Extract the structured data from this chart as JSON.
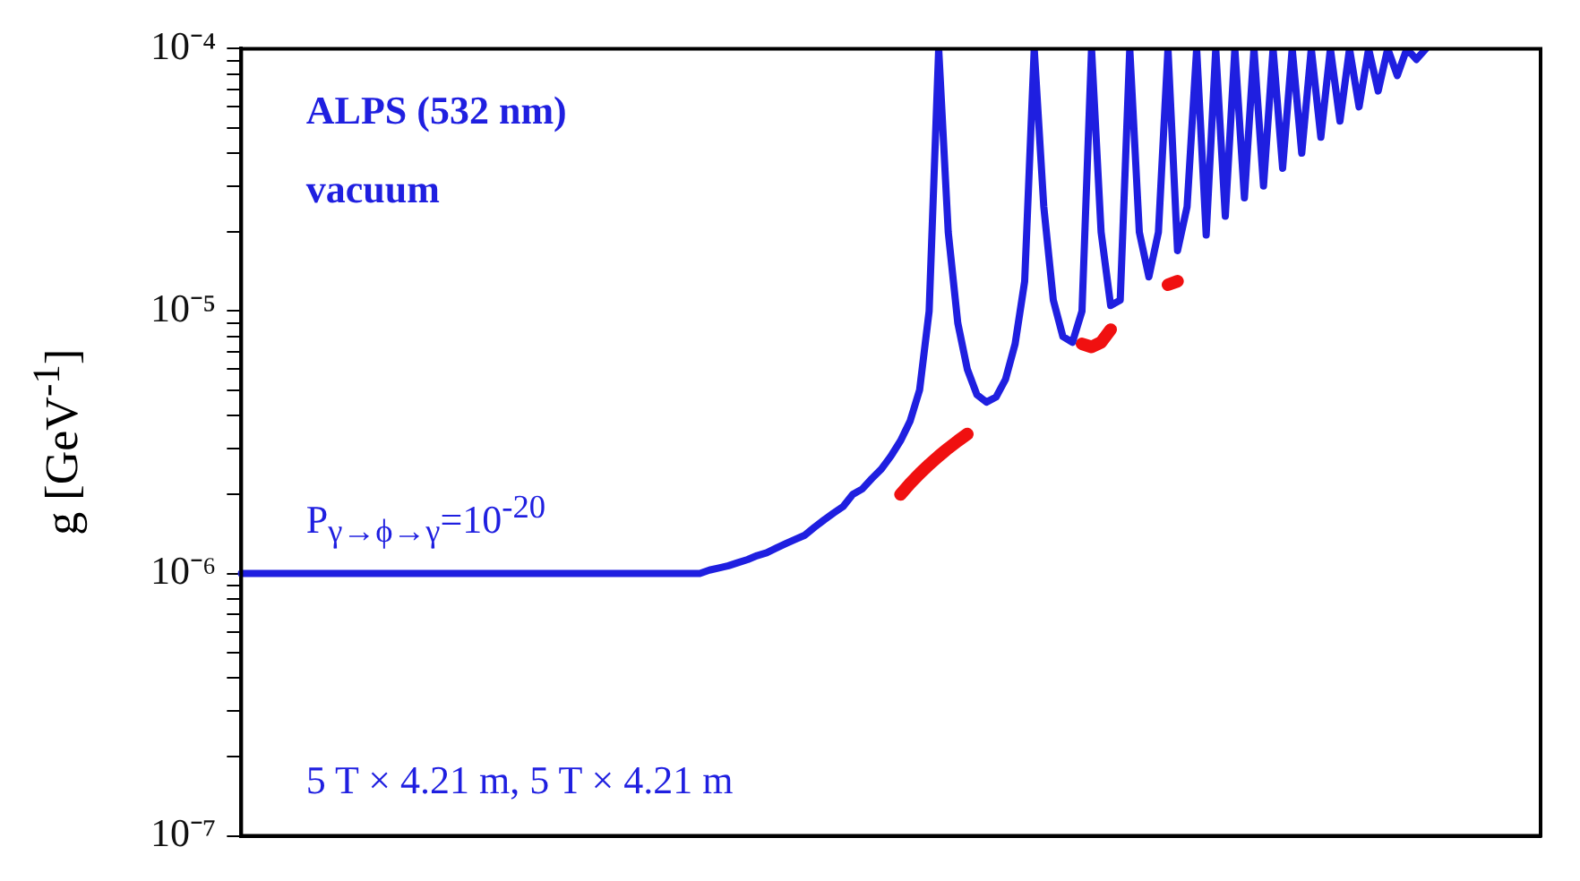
{
  "chart_data": {
    "type": "line",
    "ylabel": "g [GeV$^{-1}$]",
    "annotations": [
      "ALPS (532 nm)",
      "vacuum",
      "P$_{γ→ϕ→γ}$=10$^{-20}$",
      "5 T × 4.21 m, 5 T × 4.21 m"
    ],
    "log": "y",
    "grid": false,
    "ylim": [
      1e-07,
      0.0001
    ],
    "yticks": [
      {
        "value": 1e-07,
        "label": "10⁻⁷"
      },
      {
        "value": 2e-07,
        "label": null
      },
      {
        "value": 3e-07,
        "label": null
      },
      {
        "value": 4e-07,
        "label": null
      },
      {
        "value": 5e-07,
        "label": null
      },
      {
        "value": 6e-07,
        "label": null
      },
      {
        "value": 7e-07,
        "label": null
      },
      {
        "value": 8e-07,
        "label": null
      },
      {
        "value": 9e-07,
        "label": null
      },
      {
        "value": 1e-06,
        "label": "10⁻⁶"
      },
      {
        "value": 2e-06,
        "label": null
      },
      {
        "value": 3e-06,
        "label": null
      },
      {
        "value": 4e-06,
        "label": null
      },
      {
        "value": 5e-06,
        "label": null
      },
      {
        "value": 6e-06,
        "label": null
      },
      {
        "value": 7e-06,
        "label": null
      },
      {
        "value": 8e-06,
        "label": null
      },
      {
        "value": 9e-06,
        "label": null
      },
      {
        "value": 1e-05,
        "label": "10⁻⁵"
      },
      {
        "value": 2e-05,
        "label": null
      },
      {
        "value": 3e-05,
        "label": null
      },
      {
        "value": 4e-05,
        "label": null
      },
      {
        "value": 5e-05,
        "label": null
      },
      {
        "value": 6e-05,
        "label": null
      },
      {
        "value": 7e-05,
        "label": null
      },
      {
        "value": 8e-05,
        "label": null
      },
      {
        "value": 9e-05,
        "label": null
      },
      {
        "value": 0.0001,
        "label": "10⁻⁴"
      }
    ],
    "categories": [
      null,
      null,
      null,
      null,
      null,
      null,
      null,
      null,
      null,
      null,
      null,
      null,
      null,
      null,
      null,
      null,
      null,
      null,
      null,
      null,
      null,
      null,
      null,
      null,
      null,
      null,
      null,
      null,
      null,
      null,
      null,
      null,
      null,
      null,
      null,
      null,
      null,
      null,
      null,
      null,
      null,
      null,
      null,
      null,
      null,
      null,
      null,
      null,
      null,
      null,
      null,
      null,
      null,
      null,
      null,
      null,
      null,
      null,
      null,
      null,
      null,
      null,
      null,
      null,
      null,
      null,
      null,
      null,
      null,
      null,
      null,
      null,
      null,
      null,
      null,
      null,
      null,
      null,
      null,
      null,
      null,
      null,
      null,
      null,
      null,
      null,
      null,
      null,
      null,
      null,
      null,
      null,
      null,
      null,
      null,
      null,
      null,
      null,
      null,
      null,
      null,
      null,
      null,
      null,
      null,
      null,
      null,
      null,
      null,
      null,
      null,
      null,
      null,
      null,
      null,
      null,
      null,
      null,
      null,
      null,
      null,
      null,
      null,
      null,
      null,
      null,
      null,
      null,
      null,
      null,
      null,
      null,
      null,
      null,
      null,
      null,
      null
    ],
    "series": [
      {
        "color": "#1f1fe0",
        "values": [
          1e-06,
          1e-06,
          1e-06,
          1e-06,
          1e-06,
          1e-06,
          1e-06,
          1e-06,
          1e-06,
          1e-06,
          1e-06,
          1e-06,
          1e-06,
          1e-06,
          1e-06,
          1e-06,
          1e-06,
          1e-06,
          1e-06,
          1e-06,
          1e-06,
          1e-06,
          1e-06,
          1e-06,
          1e-06,
          1e-06,
          1e-06,
          1e-06,
          1e-06,
          1e-06,
          1e-06,
          1e-06,
          1e-06,
          1e-06,
          1e-06,
          1e-06,
          1e-06,
          1e-06,
          1e-06,
          1e-06,
          1e-06,
          1e-06,
          1e-06,
          1e-06,
          1e-06,
          1e-06,
          1e-06,
          1e-06,
          1e-06,
          1.03e-06,
          1.05e-06,
          1.07e-06,
          1.1e-06,
          1.13e-06,
          1.17e-06,
          1.2e-06,
          1.25e-06,
          1.3e-06,
          1.35e-06,
          1.4e-06,
          1.5e-06,
          1.6e-06,
          1.7e-06,
          1.8e-06,
          2e-06,
          2.1e-06,
          2.3e-06,
          2.5e-06,
          2.8e-06,
          3.2e-06,
          3.8e-06,
          5e-06,
          1e-05,
          0.0001,
          2e-05,
          9e-06,
          6e-06,
          4.8e-06,
          4.5e-06,
          4.7e-06,
          5.5e-06,
          7.5e-06,
          1.3e-05,
          0.0001,
          2.5e-05,
          1.1e-05,
          8e-06,
          7.6e-06,
          1e-05,
          0.0001,
          2e-05,
          1.05e-05,
          1.1e-05,
          0.0001,
          2e-05,
          1.35e-05,
          2e-05,
          0.0001,
          1.7e-05,
          2.5e-05,
          0.0001,
          1.95e-05,
          0.0001,
          2.3e-05,
          0.0001,
          2.7e-05,
          0.0001,
          3e-05,
          0.0001,
          3.5e-05,
          0.0001,
          4e-05,
          0.0001,
          4.6e-05,
          0.0001,
          5.3e-05,
          0.0001,
          6e-05,
          0.0001,
          6.9e-05,
          0.0001,
          7.9e-05,
          0.0001,
          9.1e-05,
          0.0001,
          null,
          null,
          null,
          null,
          null,
          null,
          null,
          null,
          null,
          null,
          null,
          null
        ]
      },
      {
        "color": "#f01010",
        "values": [
          null,
          null,
          null,
          null,
          null,
          null,
          null,
          null,
          null,
          null,
          null,
          null,
          null,
          null,
          null,
          null,
          null,
          null,
          null,
          null,
          null,
          null,
          null,
          null,
          null,
          null,
          null,
          null,
          null,
          null,
          null,
          null,
          null,
          null,
          null,
          null,
          null,
          null,
          null,
          null,
          null,
          null,
          null,
          null,
          null,
          null,
          null,
          null,
          null,
          null,
          null,
          null,
          null,
          null,
          null,
          null,
          null,
          null,
          null,
          null,
          null,
          null,
          null,
          null,
          null,
          null,
          null,
          null,
          null,
          2e-06,
          2.2e-06,
          2.4e-06,
          2.6e-06,
          2.8e-06,
          3e-06,
          3.2e-06,
          3.4e-06,
          null,
          null,
          null,
          null,
          null,
          null,
          null,
          null,
          null,
          null,
          null,
          7.5e-06,
          7.3e-06,
          7.6e-06,
          8.5e-06,
          null,
          null,
          null,
          null,
          null,
          1.26e-05,
          1.3e-05,
          null,
          null,
          null,
          null,
          null,
          null,
          null,
          null,
          null,
          null,
          null,
          null,
          null,
          null,
          null,
          null,
          null,
          null,
          null,
          null,
          null,
          null,
          null,
          null,
          null,
          null,
          null,
          null,
          null,
          null,
          null,
          null,
          null,
          null,
          null,
          null,
          null,
          null
        ]
      }
    ]
  }
}
